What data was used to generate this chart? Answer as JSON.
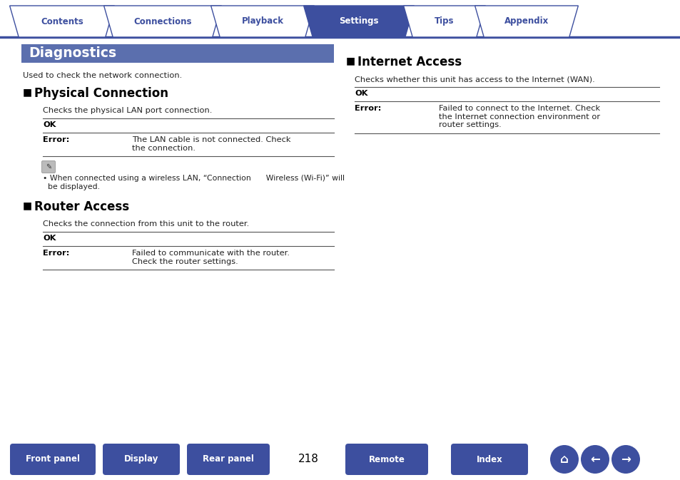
{
  "page_num": "218",
  "bg_color": "#ffffff",
  "tab_color_active": "#3d4f9f",
  "tab_color_inactive": "#ffffff",
  "tab_border_color": "#3d4f9f",
  "tab_labels": [
    "Contents",
    "Connections",
    "Playback",
    "Settings",
    "Tips",
    "Appendix"
  ],
  "tab_active_index": 3,
  "header_bg": "#5b6fae",
  "header_text": "Diagnostics",
  "header_text_color": "#ffffff",
  "intro_text": "Used to check the network connection.",
  "section1_title": "Physical Connection",
  "section1_desc": "Checks the physical LAN port connection.",
  "section1_ok": "OK",
  "section1_error_label": "Error:",
  "section1_error_text": "The LAN cable is not connected. Check\nthe connection.",
  "section1_note_bullet": "• When connected using a wireless LAN, “Connection      Wireless (Wi-Fi)” will\n  be displayed.",
  "section2_title": "Router Access",
  "section2_desc": "Checks the connection from this unit to the router.",
  "section2_ok": "OK",
  "section2_error_label": "Error:",
  "section2_error_text": "Failed to communicate with the router.\nCheck the router settings.",
  "section3_title": "Internet Access",
  "section3_desc": "Checks whether this unit has access to the Internet (WAN).",
  "section3_ok": "OK",
  "section3_error_label": "Error:",
  "section3_error_text": "Failed to connect to the Internet. Check\nthe Internet connection environment or\nrouter settings.",
  "bottom_buttons": [
    "Front panel",
    "Display",
    "Rear panel",
    "Remote",
    "Index"
  ],
  "button_color": "#3d4f9f",
  "button_text_color": "#ffffff",
  "divider_color": "#555555",
  "text_color": "#222222",
  "bold_color": "#000000",
  "tab_line_color": "#3d4f9f"
}
